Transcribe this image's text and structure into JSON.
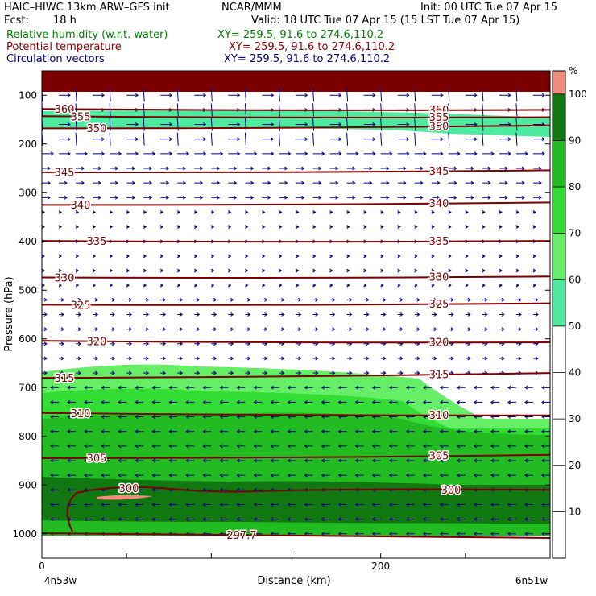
{
  "header": {
    "model": "HAIC–HIWC 13km ARW–GFS init",
    "center": "NCAR/MMM",
    "init": "Init: 00 UTC Tue 07 Apr 15",
    "fcst_label": "Fcst:",
    "fcst_value": "18 h",
    "valid": "Valid: 18 UTC Tue 07 Apr 15 (15 LST Tue 07 Apr 15)",
    "fields": [
      {
        "name": "Relative humidity (w.r.t. water)",
        "xy": "XY= 259.5, 91.6 to 274.6,110.2",
        "color": "#008000"
      },
      {
        "name": "Potential temperature",
        "xy": "XY= 259.5, 91.6 to 274.6,110.2",
        "color": "#8b0000"
      },
      {
        "name": "Circulation vectors",
        "xy": "XY= 259.5, 91.6 to 274.6,110.2",
        "color": "#000080"
      }
    ]
  },
  "chart_data": {
    "type": "heatmap",
    "xlabel": "Distance (km)",
    "ylabel": "Pressure (hPa)",
    "x_ticks": [
      0,
      200
    ],
    "x_end_labels": [
      "4n53w",
      "6n51w"
    ],
    "y_ticks": [
      100,
      200,
      300,
      400,
      500,
      600,
      700,
      800,
      900,
      1000
    ],
    "xlim": [
      0,
      300
    ],
    "ylim": [
      1050,
      50
    ],
    "colorbar": {
      "unit": "%",
      "ticks": [
        10,
        20,
        30,
        40,
        50,
        60,
        70,
        80,
        90,
        100
      ],
      "levels": [
        {
          "from": 50,
          "to": 60,
          "color": "#4eeaa0"
        },
        {
          "from": 60,
          "to": 70,
          "color": "#66ee66"
        },
        {
          "from": 70,
          "to": 80,
          "color": "#33dd33"
        },
        {
          "from": 80,
          "to": 90,
          "color": "#22bb22"
        },
        {
          "from": 90,
          "to": 100,
          "color": "#117711"
        },
        {
          "from": 100,
          "to": 105,
          "color": "#f08c80"
        }
      ]
    },
    "theta_contours": [
      {
        "label": "360",
        "p": [
          128,
          130
        ]
      },
      {
        "label": "355",
        "p": [
          143,
          145
        ]
      },
      {
        "label": "350",
        "p": [
          168,
          162
        ]
      },
      {
        "label": "345",
        "p": [
          258,
          254
        ]
      },
      {
        "label": "340",
        "p": [
          325,
          320
        ]
      },
      {
        "label": "335",
        "p": [
          399,
          399
        ]
      },
      {
        "label": "330",
        "p": [
          474,
          472
        ]
      },
      {
        "label": "325",
        "p": [
          530,
          527
        ]
      },
      {
        "label": "320",
        "p": [
          604,
          607
        ]
      },
      {
        "label": "315",
        "p": [
          680,
          670
        ]
      },
      {
        "label": "310",
        "p": [
          752,
          757
        ]
      },
      {
        "label": "305",
        "p": [
          845,
          838
        ]
      },
      {
        "label": "300",
        "p": [
          908,
          910
        ]
      },
      {
        "label": "297.7",
        "p": [
          1000,
          1000
        ]
      }
    ]
  }
}
